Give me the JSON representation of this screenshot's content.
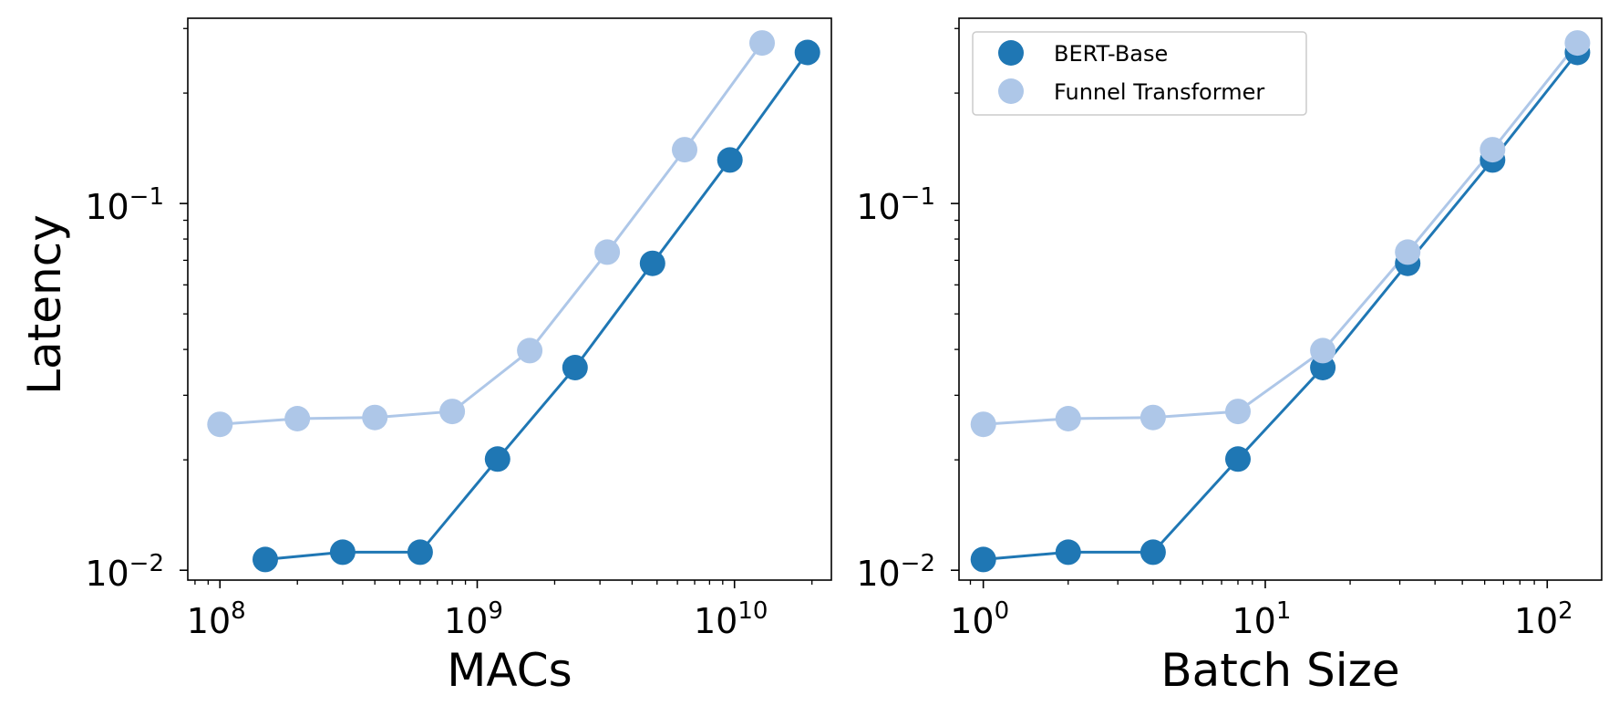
{
  "chart_data": [
    {
      "type": "line",
      "title": "",
      "xlabel": "MACs",
      "ylabel": "Latency",
      "xscale": "log",
      "yscale": "log",
      "xlim": [
        75000000,
        23800000000
      ],
      "ylim": [
        0.0094,
        0.32
      ],
      "grid": false,
      "x_ticks": [
        {
          "value": 100000000,
          "base": "10",
          "exp": "8"
        },
        {
          "value": 1000000000,
          "base": "10",
          "exp": "9"
        },
        {
          "value": 10000000000,
          "base": "10",
          "exp": "10"
        }
      ],
      "y_ticks": [
        {
          "value": 0.01,
          "base": "10",
          "exp": "−2"
        },
        {
          "value": 0.1,
          "base": "10",
          "exp": "−1"
        }
      ],
      "series": [
        {
          "name": "BERT-Base",
          "color": "#1f77b4",
          "x": [
            150000000,
            300000000,
            600000000,
            1200000000,
            2400000000,
            4800000000,
            9600000000,
            19200000000
          ],
          "y": [
            0.0107,
            0.0112,
            0.0112,
            0.0201,
            0.0357,
            0.0687,
            0.1314,
            0.2582
          ]
        },
        {
          "name": "Funnel Transformer",
          "color": "#aec7e8",
          "x": [
            100000000,
            200000000,
            400000000,
            800000000,
            1600000000,
            3200000000,
            6400000000,
            12800000000
          ],
          "y": [
            0.025,
            0.0259,
            0.0261,
            0.0271,
            0.0397,
            0.0737,
            0.1402,
            0.274
          ]
        }
      ]
    },
    {
      "type": "line",
      "title": "",
      "xlabel": "Batch Size",
      "ylabel": "",
      "xscale": "log",
      "yscale": "log",
      "xlim": [
        0.82,
        156
      ],
      "ylim": [
        0.0094,
        0.32
      ],
      "grid": false,
      "legend": "top-left",
      "x_ticks": [
        {
          "value": 1,
          "base": "10",
          "exp": "0"
        },
        {
          "value": 10,
          "base": "10",
          "exp": "1"
        },
        {
          "value": 100,
          "base": "10",
          "exp": "2"
        }
      ],
      "y_ticks": [
        {
          "value": 0.01,
          "base": "10",
          "exp": "−2"
        },
        {
          "value": 0.1,
          "base": "10",
          "exp": "−1"
        }
      ],
      "series": [
        {
          "name": "BERT-Base",
          "color": "#1f77b4",
          "x": [
            1,
            2,
            4,
            8,
            16,
            32,
            64,
            128
          ],
          "y": [
            0.0107,
            0.0112,
            0.0112,
            0.0201,
            0.0357,
            0.0687,
            0.1314,
            0.2582
          ]
        },
        {
          "name": "Funnel Transformer",
          "color": "#aec7e8",
          "x": [
            1,
            2,
            4,
            8,
            16,
            32,
            64,
            128
          ],
          "y": [
            0.025,
            0.0259,
            0.0261,
            0.0271,
            0.0397,
            0.0737,
            0.1402,
            0.274
          ]
        }
      ]
    }
  ]
}
